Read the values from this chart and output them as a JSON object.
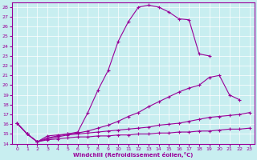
{
  "xlabel": "Windchill (Refroidissement éolien,°C)",
  "bg_color": "#c8eef0",
  "line_color": "#990099",
  "xlim": [
    -0.5,
    23.5
  ],
  "ylim": [
    14,
    28.5
  ],
  "xticks": [
    0,
    1,
    2,
    3,
    4,
    5,
    6,
    7,
    8,
    9,
    10,
    11,
    12,
    13,
    14,
    15,
    16,
    17,
    18,
    19,
    20,
    21,
    22,
    23
  ],
  "yticks": [
    14,
    15,
    16,
    17,
    18,
    19,
    20,
    21,
    22,
    23,
    24,
    25,
    26,
    27,
    28
  ],
  "series": [
    {
      "x": [
        0,
        1,
        2,
        3,
        4,
        5,
        6,
        7,
        8,
        9,
        10,
        11,
        12,
        13,
        14,
        15,
        16,
        17,
        18,
        19
      ],
      "y": [
        16.1,
        15.0,
        14.2,
        14.8,
        14.9,
        15.0,
        15.2,
        17.2,
        19.5,
        21.5,
        24.5,
        26.5,
        28.0,
        28.2,
        28.0,
        27.5,
        26.8,
        26.7,
        23.2,
        23.0
      ]
    },
    {
      "x": [
        0,
        1,
        2,
        3,
        4,
        5,
        6,
        7,
        8,
        9,
        10,
        11,
        12,
        13,
        14,
        15,
        16,
        17,
        18,
        19,
        20,
        21,
        22
      ],
      "y": [
        16.1,
        15.0,
        14.2,
        14.6,
        14.8,
        15.0,
        15.1,
        15.3,
        15.6,
        15.9,
        16.3,
        16.8,
        17.2,
        17.8,
        18.3,
        18.8,
        19.3,
        19.7,
        20.0,
        20.8,
        21.0,
        19.0,
        18.5
      ]
    },
    {
      "x": [
        0,
        1,
        2,
        3,
        4,
        5,
        6,
        7,
        8,
        9,
        10,
        11,
        12,
        13,
        14,
        15,
        16,
        17,
        18,
        19,
        20,
        21,
        22,
        23
      ],
      "y": [
        16.1,
        15.0,
        14.2,
        14.5,
        14.7,
        14.9,
        15.0,
        15.1,
        15.2,
        15.3,
        15.4,
        15.5,
        15.6,
        15.7,
        15.9,
        16.0,
        16.1,
        16.3,
        16.5,
        16.7,
        16.8,
        16.9,
        17.0,
        17.2
      ]
    },
    {
      "x": [
        0,
        1,
        2,
        3,
        4,
        5,
        6,
        7,
        8,
        9,
        10,
        11,
        12,
        13,
        14,
        15,
        16,
        17,
        18,
        19,
        20,
        21,
        22,
        23
      ],
      "y": [
        16.1,
        15.0,
        14.2,
        14.4,
        14.5,
        14.6,
        14.7,
        14.7,
        14.8,
        14.8,
        14.9,
        14.9,
        15.0,
        15.0,
        15.1,
        15.1,
        15.2,
        15.2,
        15.3,
        15.3,
        15.4,
        15.5,
        15.5,
        15.6
      ]
    }
  ]
}
